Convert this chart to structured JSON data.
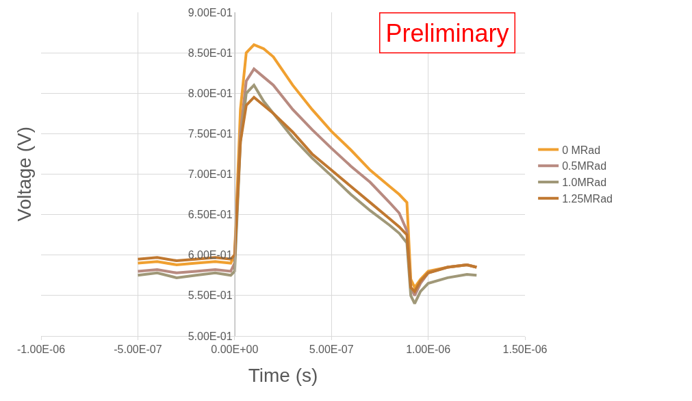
{
  "chart_data": {
    "type": "line",
    "xlabel": "Time (s)",
    "ylabel": "Voltage (V)",
    "annotations": [
      "Preliminary"
    ],
    "xlim": [
      -1e-06,
      1.5e-06
    ],
    "xticks": [
      {
        "value": -1e-06,
        "label": "-1.00E-06"
      },
      {
        "value": -5e-07,
        "label": "-5.00E-07"
      },
      {
        "value": 0,
        "label": "0.00E+00"
      },
      {
        "value": 5e-07,
        "label": "5.00E-07"
      },
      {
        "value": 1e-06,
        "label": "1.00E-06"
      },
      {
        "value": 1.5e-06,
        "label": "1.50E-06"
      }
    ],
    "ylim": [
      0.5,
      0.9
    ],
    "yticks": [
      {
        "value": 0.5,
        "label": "5.00E-01"
      },
      {
        "value": 0.55,
        "label": "5.50E-01"
      },
      {
        "value": 0.6,
        "label": "6.00E-01"
      },
      {
        "value": 0.65,
        "label": "6.50E-01"
      },
      {
        "value": 0.7,
        "label": "7.00E-01"
      },
      {
        "value": 0.75,
        "label": "7.50E-01"
      },
      {
        "value": 0.8,
        "label": "8.00E-01"
      },
      {
        "value": 0.85,
        "label": "8.50E-01"
      },
      {
        "value": 0.9,
        "label": "9.00E-01"
      }
    ],
    "grid": true,
    "legend": "right",
    "marker": "none",
    "line_style": "solid",
    "x": [
      -5e-07,
      -4e-07,
      -3e-07,
      -2e-07,
      -1e-07,
      -2e-08,
      0,
      3e-08,
      6e-08,
      1e-07,
      1.5e-07,
      2e-07,
      3e-07,
      4e-07,
      5e-07,
      6e-07,
      7e-07,
      8e-07,
      8.5e-07,
      8.9e-07,
      9.1e-07,
      9.3e-07,
      9.6e-07,
      1e-06,
      1.1e-06,
      1.2e-06,
      1.25e-06
    ],
    "series": [
      {
        "name": "0 MRad",
        "color": "#f0a030",
        "values": [
          0.59,
          0.592,
          0.588,
          0.59,
          0.592,
          0.59,
          0.6,
          0.78,
          0.85,
          0.86,
          0.855,
          0.845,
          0.81,
          0.78,
          0.753,
          0.73,
          0.705,
          0.685,
          0.675,
          0.665,
          0.57,
          0.56,
          0.57,
          0.58,
          0.585,
          0.588,
          0.585
        ]
      },
      {
        "name": "0.5MRad",
        "color": "#b88a80",
        "values": [
          0.58,
          0.582,
          0.578,
          0.58,
          0.582,
          0.58,
          0.59,
          0.75,
          0.815,
          0.83,
          0.82,
          0.81,
          0.78,
          0.755,
          0.732,
          0.71,
          0.69,
          0.665,
          0.652,
          0.63,
          0.56,
          0.55,
          0.565,
          0.578,
          0.585,
          0.588,
          0.585
        ]
      },
      {
        "name": "1.0MRad",
        "color": "#a09878",
        "values": [
          0.575,
          0.578,
          0.572,
          0.575,
          0.578,
          0.575,
          0.58,
          0.74,
          0.8,
          0.81,
          0.79,
          0.775,
          0.745,
          0.72,
          0.698,
          0.675,
          0.655,
          0.637,
          0.627,
          0.615,
          0.55,
          0.54,
          0.555,
          0.565,
          0.572,
          0.576,
          0.575
        ]
      },
      {
        "name": "1.25MRad",
        "color": "#c07830",
        "values": [
          0.595,
          0.597,
          0.593,
          0.595,
          0.597,
          0.595,
          0.6,
          0.74,
          0.785,
          0.795,
          0.785,
          0.775,
          0.752,
          0.725,
          0.705,
          0.685,
          0.665,
          0.645,
          0.635,
          0.625,
          0.56,
          0.555,
          0.568,
          0.578,
          0.585,
          0.588,
          0.585
        ]
      }
    ]
  }
}
